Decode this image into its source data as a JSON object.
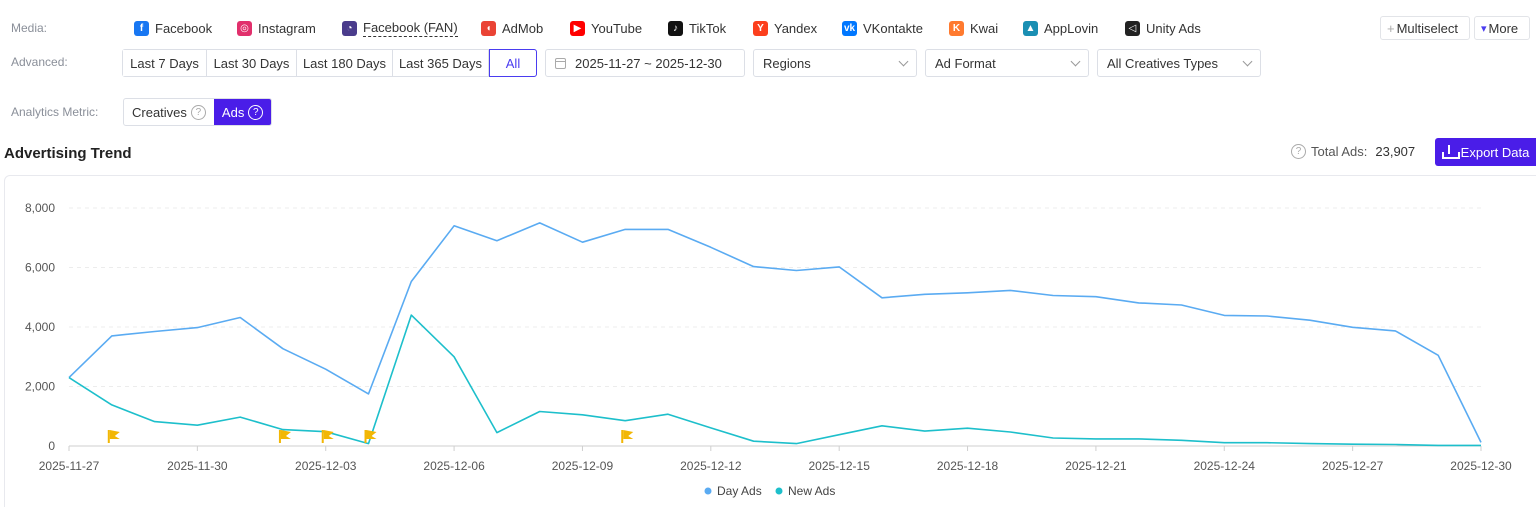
{
  "media": {
    "label": "Media:",
    "items": [
      {
        "name": "Facebook",
        "icon": "facebook-icon",
        "color": "#1877f2",
        "glyph": "f"
      },
      {
        "name": "Instagram",
        "icon": "instagram-icon",
        "color": "#e1306c",
        "glyph": "◎"
      },
      {
        "name": "Facebook (FAN)",
        "icon": "facebook-fan-icon",
        "color": "#4a3c8c",
        "glyph": "◔"
      },
      {
        "name": "AdMob",
        "icon": "admob-icon",
        "color": "#ea4335",
        "glyph": "◖"
      },
      {
        "name": "YouTube",
        "icon": "youtube-icon",
        "color": "#ff0000",
        "glyph": "▶"
      },
      {
        "name": "TikTok",
        "icon": "tiktok-icon",
        "color": "#111111",
        "glyph": "♪"
      },
      {
        "name": "Yandex",
        "icon": "yandex-icon",
        "color": "#fc3f1d",
        "glyph": "Y"
      },
      {
        "name": "VKontakte",
        "icon": "vkontakte-icon",
        "color": "#0077ff",
        "glyph": "vk"
      },
      {
        "name": "Kwai",
        "icon": "kwai-icon",
        "color": "#ff7a2f",
        "glyph": "K"
      },
      {
        "name": "AppLovin",
        "icon": "applovin-icon",
        "color": "#1a8fb3",
        "glyph": "▲"
      },
      {
        "name": "Unity Ads",
        "icon": "unity-ads-icon",
        "color": "#222222",
        "glyph": "◁"
      }
    ],
    "multiselect_label": "Multiselect",
    "more_label": "More"
  },
  "advanced": {
    "label": "Advanced:",
    "ranges": [
      "Last 7 Days",
      "Last 30 Days",
      "Last 180 Days",
      "Last 365 Days",
      "All"
    ],
    "selected_range": "All",
    "date_range": "2025-11-27 ~ 2025-12-30",
    "regions": "Regions",
    "ad_format": "Ad Format",
    "creative_types": "All Creatives Types"
  },
  "analytics": {
    "label": "Analytics Metric:",
    "options": [
      "Creatives",
      "Ads"
    ],
    "selected": "Ads"
  },
  "section": {
    "title": "Advertising Trend",
    "total_label": "Total Ads:",
    "total_value": "23,907",
    "export_label": "Export Data"
  },
  "chart_data": {
    "type": "line",
    "x": [
      "2025-11-27",
      "2025-11-28",
      "2025-11-29",
      "2025-11-30",
      "2025-12-01",
      "2025-12-02",
      "2025-12-03",
      "2025-12-04",
      "2025-12-05",
      "2025-12-06",
      "2025-12-07",
      "2025-12-08",
      "2025-12-09",
      "2025-12-10",
      "2025-12-11",
      "2025-12-12",
      "2025-12-13",
      "2025-12-14",
      "2025-12-15",
      "2025-12-16",
      "2025-12-17",
      "2025-12-18",
      "2025-12-19",
      "2025-12-20",
      "2025-12-21",
      "2025-12-22",
      "2025-12-23",
      "2025-12-24",
      "2025-12-25",
      "2025-12-26",
      "2025-12-27",
      "2025-12-28",
      "2025-12-29",
      "2025-12-30"
    ],
    "x_ticks": [
      "2025-11-27",
      "2025-11-30",
      "2025-12-03",
      "2025-12-06",
      "2025-12-09",
      "2025-12-12",
      "2025-12-15",
      "2025-12-18",
      "2025-12-21",
      "2025-12-24",
      "2025-12-27",
      "2025-12-30"
    ],
    "series": [
      {
        "name": "Day Ads",
        "color": "#5aabf2",
        "values": [
          2300,
          3700,
          3850,
          3980,
          4320,
          3270,
          2580,
          1750,
          5530,
          7400,
          6900,
          7500,
          6850,
          7280,
          7280,
          6680,
          6030,
          5900,
          6020,
          4980,
          5100,
          5150,
          5230,
          5060,
          5020,
          4810,
          4740,
          4390,
          4370,
          4230,
          3990,
          3870,
          3050,
          120
        ]
      },
      {
        "name": "New Ads",
        "color": "#1dbfcb",
        "values": [
          2300,
          1380,
          820,
          700,
          970,
          550,
          480,
          80,
          4400,
          3000,
          450,
          1160,
          1050,
          850,
          1070,
          610,
          160,
          80,
          380,
          680,
          500,
          600,
          470,
          270,
          240,
          240,
          190,
          110,
          110,
          80,
          60,
          50,
          20,
          20
        ]
      }
    ],
    "flags_at": [
      "2025-11-28",
      "2025-12-02",
      "2025-12-03",
      "2025-12-04",
      "2025-12-10"
    ],
    "flag_color": "#f2b705",
    "yticks": [
      "0",
      "2,000",
      "4,000",
      "6,000",
      "8,000"
    ],
    "ylim": [
      0,
      8000
    ],
    "grid": true,
    "legend_position": "bottom"
  }
}
